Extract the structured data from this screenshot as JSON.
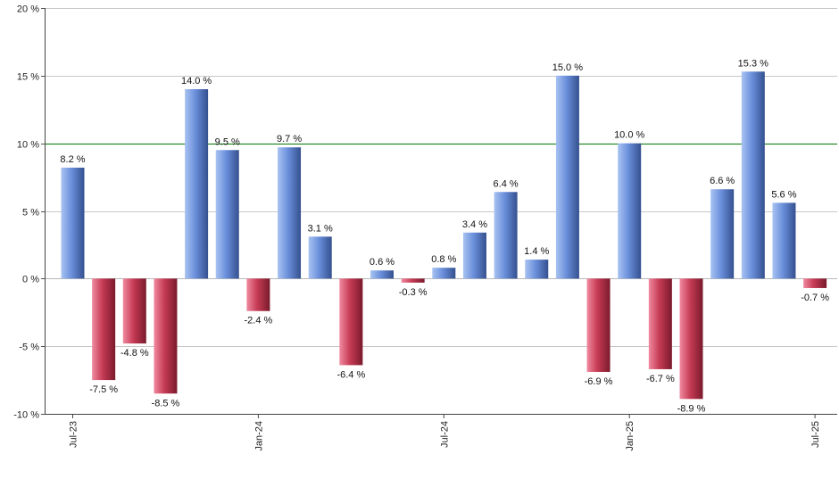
{
  "chart_data": {
    "type": "bar",
    "title": "",
    "xlabel": "",
    "ylabel": "",
    "ylim": [
      -10,
      20
    ],
    "y_ticks": [
      20,
      15,
      10,
      5,
      0,
      -5,
      -10
    ],
    "y_tick_labels": [
      "20 %",
      "15 %",
      "10 %",
      "5 %",
      "0 %",
      "-5 %",
      "-10 %"
    ],
    "reference_line": {
      "value": 10,
      "color": "#007a00"
    },
    "grid": true,
    "colors": {
      "positive": "#5f87d6",
      "negative": "#c63b55"
    },
    "x_tick_labels": [
      {
        "index": 0,
        "label": "Jul-23"
      },
      {
        "index": 6,
        "label": "Jan-24"
      },
      {
        "index": 12,
        "label": "Jul-24"
      },
      {
        "index": 18,
        "label": "Jan-25"
      },
      {
        "index": 24,
        "label": "Jul-25"
      }
    ],
    "values": [
      8.2,
      -7.5,
      -4.8,
      -8.5,
      14.0,
      9.5,
      -2.4,
      9.7,
      3.1,
      -6.4,
      0.6,
      -0.3,
      0.8,
      3.4,
      6.4,
      1.4,
      15.0,
      -6.9,
      10.0,
      -6.7,
      -8.9,
      6.6,
      15.3,
      5.6,
      -0.7
    ],
    "value_labels": [
      "8.2 %",
      "-7.5 %",
      "-4.8 %",
      "-8.5 %",
      "14.0 %",
      "9.5 %",
      "-2.4 %",
      "9.7 %",
      "3.1 %",
      "-6.4 %",
      "0.6 %",
      "-0.3 %",
      "0.8 %",
      "3.4 %",
      "6.4 %",
      "1.4 %",
      "15.0 %",
      "-6.9 %",
      "10.0 %",
      "-6.7 %",
      "-8.9 %",
      "6.6 %",
      "15.3 %",
      "5.6 %",
      "-0.7 %"
    ]
  }
}
